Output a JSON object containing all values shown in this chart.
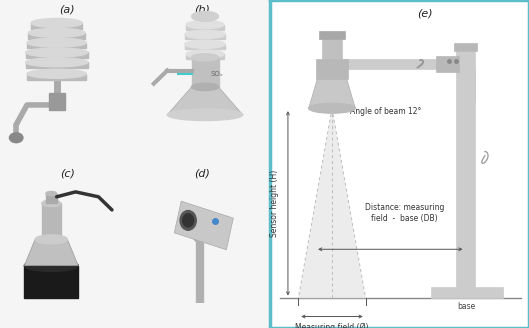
{
  "fig_width": 5.29,
  "fig_height": 3.28,
  "dpi": 100,
  "fig_bg": "#f2f2f2",
  "panel_bg": "#f5f5f5",
  "diagram_border_color": "#5bbec8",
  "diagram_bg": "#ffffff",
  "labels": {
    "a": "(a)",
    "b": "(b)",
    "c": "(c)",
    "d": "(d)",
    "e": "(e)"
  },
  "text_angle_of_beam": "Angle of beam 12°",
  "text_sensor_height": "Sensor height (H)",
  "text_distance": "Distance: measuring\nfield  -  base (DB)",
  "text_measuring_field": "Measuring field (Ø)",
  "text_base": "base",
  "label_fontsize": 8,
  "diagram_text_fontsize": 5.5
}
